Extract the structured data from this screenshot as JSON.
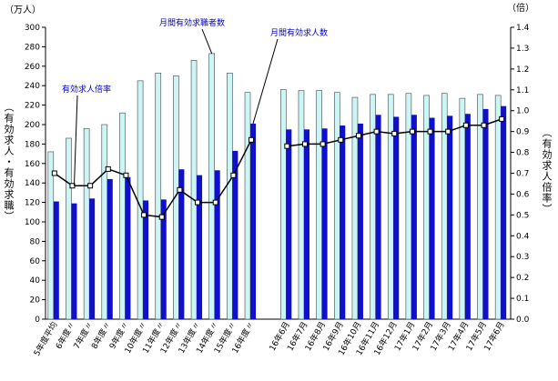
{
  "chart_data": {
    "type": "bar",
    "unit_left": "（万人）",
    "unit_right": "（倍）",
    "ylabel": "（有効求人・有効求職）",
    "y2label": "（有効求人倍率）",
    "ylim": [
      0,
      300
    ],
    "y2lim": [
      0,
      1.4
    ],
    "yticks": [
      "0",
      "20",
      "40",
      "60",
      "80",
      "100",
      "120",
      "140",
      "160",
      "180",
      "200",
      "220",
      "240",
      "260",
      "280",
      "300"
    ],
    "y2ticks": [
      "0.0",
      "0.1",
      "0.2",
      "0.3",
      "0.4",
      "0.5",
      "0.6",
      "0.7",
      "0.8",
      "0.9",
      "1.0",
      "1.1",
      "1.2",
      "1.3",
      "1.4"
    ],
    "categories": [
      "5年度平均",
      "6年度〃",
      "7年度〃",
      "8年度〃",
      "9年度〃",
      "10年度〃",
      "11年度〃",
      "12年度〃",
      "13年度〃",
      "14年度〃",
      "15年度〃",
      "16年度〃",
      "",
      "16年6月",
      "16年7月",
      "16年8月",
      "16年9月",
      "16年10月",
      "16年11月",
      "16年12月",
      "17年1月",
      "17年2月",
      "17年3月",
      "17年4月",
      "17年5月",
      "17年6月"
    ],
    "series": [
      {
        "name": "月間有効求職者数",
        "color": "#ccf5f5",
        "values": [
          172,
          186,
          196,
          200,
          212,
          245,
          253,
          250,
          266,
          273,
          253,
          233,
          null,
          236,
          235,
          235,
          233,
          228,
          231,
          231,
          232,
          230,
          232,
          227,
          231,
          230
        ]
      },
      {
        "name": "月間有効求人数",
        "color": "#1010cc",
        "values": [
          121,
          119,
          124,
          144,
          146,
          122,
          123,
          154,
          148,
          153,
          173,
          201,
          null,
          195,
          195,
          196,
          199,
          201,
          210,
          208,
          210,
          207,
          209,
          211,
          216,
          219
        ]
      },
      {
        "name": "有効求人倍率",
        "type": "line",
        "axis": "right",
        "color": "#000000",
        "values": [
          0.7,
          0.64,
          0.64,
          0.72,
          0.69,
          0.5,
          0.49,
          0.62,
          0.56,
          0.56,
          0.69,
          0.86,
          null,
          0.83,
          0.84,
          0.84,
          0.86,
          0.88,
          0.9,
          0.89,
          0.9,
          0.9,
          0.9,
          0.93,
          0.93,
          0.96
        ]
      }
    ],
    "annotations": [
      {
        "text": "月間有効求職者数",
        "target_series": 0,
        "target_index": 9
      },
      {
        "text": "月間有効求人数",
        "target_series": 1,
        "target_index": 11
      },
      {
        "text": "有効求人倍率",
        "target_series": 2,
        "target_index": 1
      }
    ]
  }
}
